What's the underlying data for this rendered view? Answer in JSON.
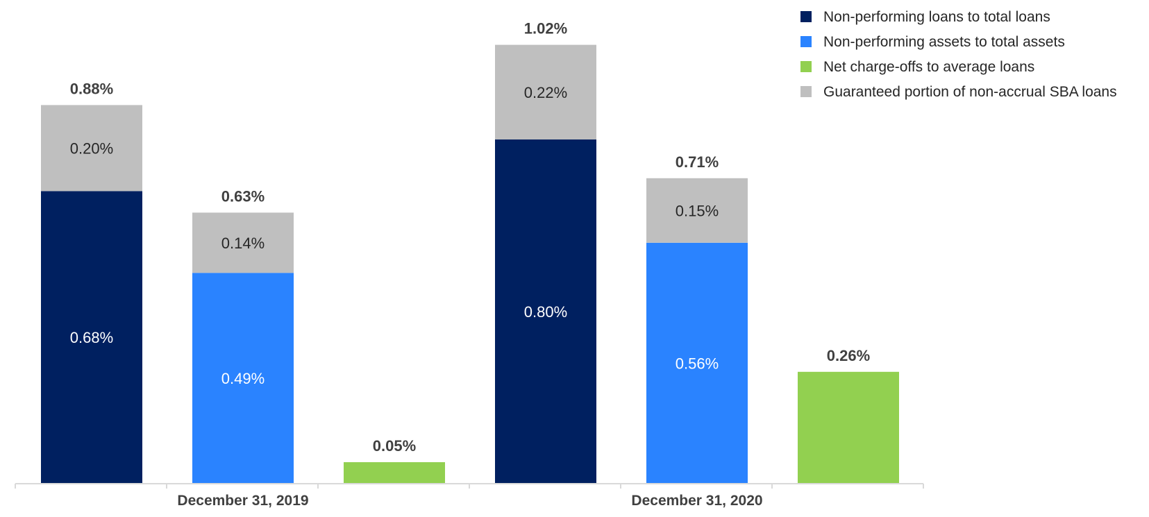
{
  "chart_data": {
    "type": "bar",
    "stacked": true,
    "categories": [
      "December 31, 2019",
      "December 31, 2020"
    ],
    "bars": [
      {
        "category": "December 31, 2019",
        "series": "Non-performing loans to total loans",
        "segments": [
          {
            "series": "Non-performing loans to total loans",
            "value": 0.68,
            "label": "0.68%"
          },
          {
            "series": "Guaranteed portion of non-accrual SBA loans",
            "value": 0.2,
            "label": "0.20%"
          }
        ],
        "total": 0.88,
        "total_label": "0.88%"
      },
      {
        "category": "December 31, 2019",
        "series": "Non-performing assets to total assets",
        "segments": [
          {
            "series": "Non-performing assets to total assets",
            "value": 0.49,
            "label": "0.49%"
          },
          {
            "series": "Guaranteed portion of non-accrual SBA loans",
            "value": 0.14,
            "label": "0.14%"
          }
        ],
        "total": 0.63,
        "total_label": "0.63%"
      },
      {
        "category": "December 31, 2019",
        "series": "Net charge-offs to average loans",
        "segments": [
          {
            "series": "Net charge-offs to average loans",
            "value": 0.05,
            "label": ""
          }
        ],
        "total": 0.05,
        "total_label": "0.05%"
      },
      {
        "category": "December 31, 2020",
        "series": "Non-performing loans to total loans",
        "segments": [
          {
            "series": "Non-performing loans to total loans",
            "value": 0.8,
            "label": "0.80%"
          },
          {
            "series": "Guaranteed portion of non-accrual SBA loans",
            "value": 0.22,
            "label": "0.22%"
          }
        ],
        "total": 1.02,
        "total_label": "1.02%"
      },
      {
        "category": "December 31, 2020",
        "series": "Non-performing assets to total assets",
        "segments": [
          {
            "series": "Non-performing assets to total assets",
            "value": 0.56,
            "label": "0.56%"
          },
          {
            "series": "Guaranteed portion of non-accrual SBA loans",
            "value": 0.15,
            "label": "0.15%"
          }
        ],
        "total": 0.71,
        "total_label": "0.71%"
      },
      {
        "category": "December 31, 2020",
        "series": "Net charge-offs to average loans",
        "segments": [
          {
            "series": "Net charge-offs to average loans",
            "value": 0.26,
            "label": ""
          }
        ],
        "total": 0.26,
        "total_label": "0.26%"
      }
    ],
    "legend": [
      {
        "name": "Non-performing loans to total loans",
        "color": "#002060"
      },
      {
        "name": "Non-performing assets to total assets",
        "color": "#2A83FF"
      },
      {
        "name": "Net charge-offs to average loans",
        "color": "#92D050"
      },
      {
        "name": "Guaranteed portion of non-accrual SBA loans",
        "color": "#BFBFBF"
      }
    ],
    "segment_label_colors": {
      "Non-performing loans to total loans": "#FFFFFF",
      "Non-performing assets to total assets": "#FFFFFF",
      "Net charge-offs to average loans": "#404040",
      "Guaranteed portion of non-accrual SBA loans": "#262626"
    },
    "axis_color": "#D9D9D9",
    "ylim": [
      0,
      1.1
    ],
    "grid": false,
    "legend_position": "top-right"
  }
}
